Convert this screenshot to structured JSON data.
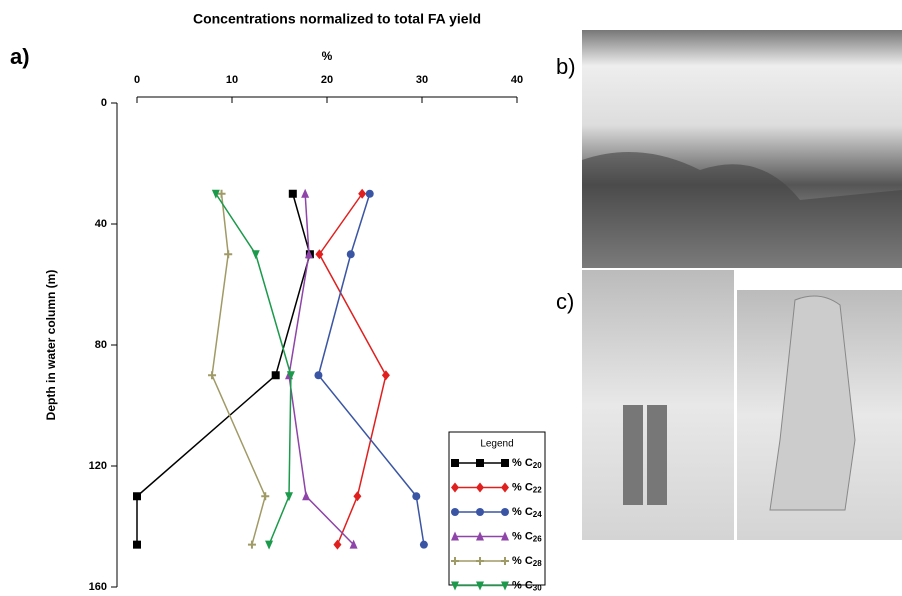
{
  "panels": {
    "a": "a)",
    "b": "b)",
    "c": "c)"
  },
  "chart_data": {
    "type": "line",
    "title": "Concentrations normalized to total FA yield",
    "xlabel": "%",
    "ylabel": "Depth in water column (m)",
    "xlim": [
      0,
      40
    ],
    "xticks": [
      0,
      10,
      20,
      30,
      40
    ],
    "ylim": [
      0,
      160
    ],
    "yticks": [
      0,
      40,
      80,
      120,
      160
    ],
    "y_inverted": true,
    "legend_title": "Legend",
    "depths": [
      30,
      50,
      90,
      130,
      146
    ],
    "series": [
      {
        "name": "% C20",
        "color": "#000000",
        "marker": "square",
        "values": [
          16.4,
          18.2,
          14.6,
          0,
          0
        ]
      },
      {
        "name": "% C22",
        "color": "#e0201e",
        "marker": "diamond",
        "values": [
          23.7,
          19.2,
          26.2,
          23.2,
          21.1
        ]
      },
      {
        "name": "% C24",
        "color": "#3a55a4",
        "marker": "circle",
        "values": [
          24.5,
          22.5,
          19.1,
          29.4,
          30.2
        ]
      },
      {
        "name": "% C26",
        "color": "#8e44a8",
        "marker": "triangle-up",
        "values": [
          17.7,
          18.1,
          16.0,
          17.8,
          22.8
        ]
      },
      {
        "name": "% C28",
        "color": "#a09a66",
        "marker": "plus",
        "values": [
          8.9,
          9.6,
          7.9,
          13.5,
          12.1
        ]
      },
      {
        "name": "% C30",
        "color": "#1a9a4a",
        "marker": "triangle-down",
        "values": [
          8.3,
          12.5,
          16.2,
          16.0,
          13.9
        ]
      }
    ]
  }
}
